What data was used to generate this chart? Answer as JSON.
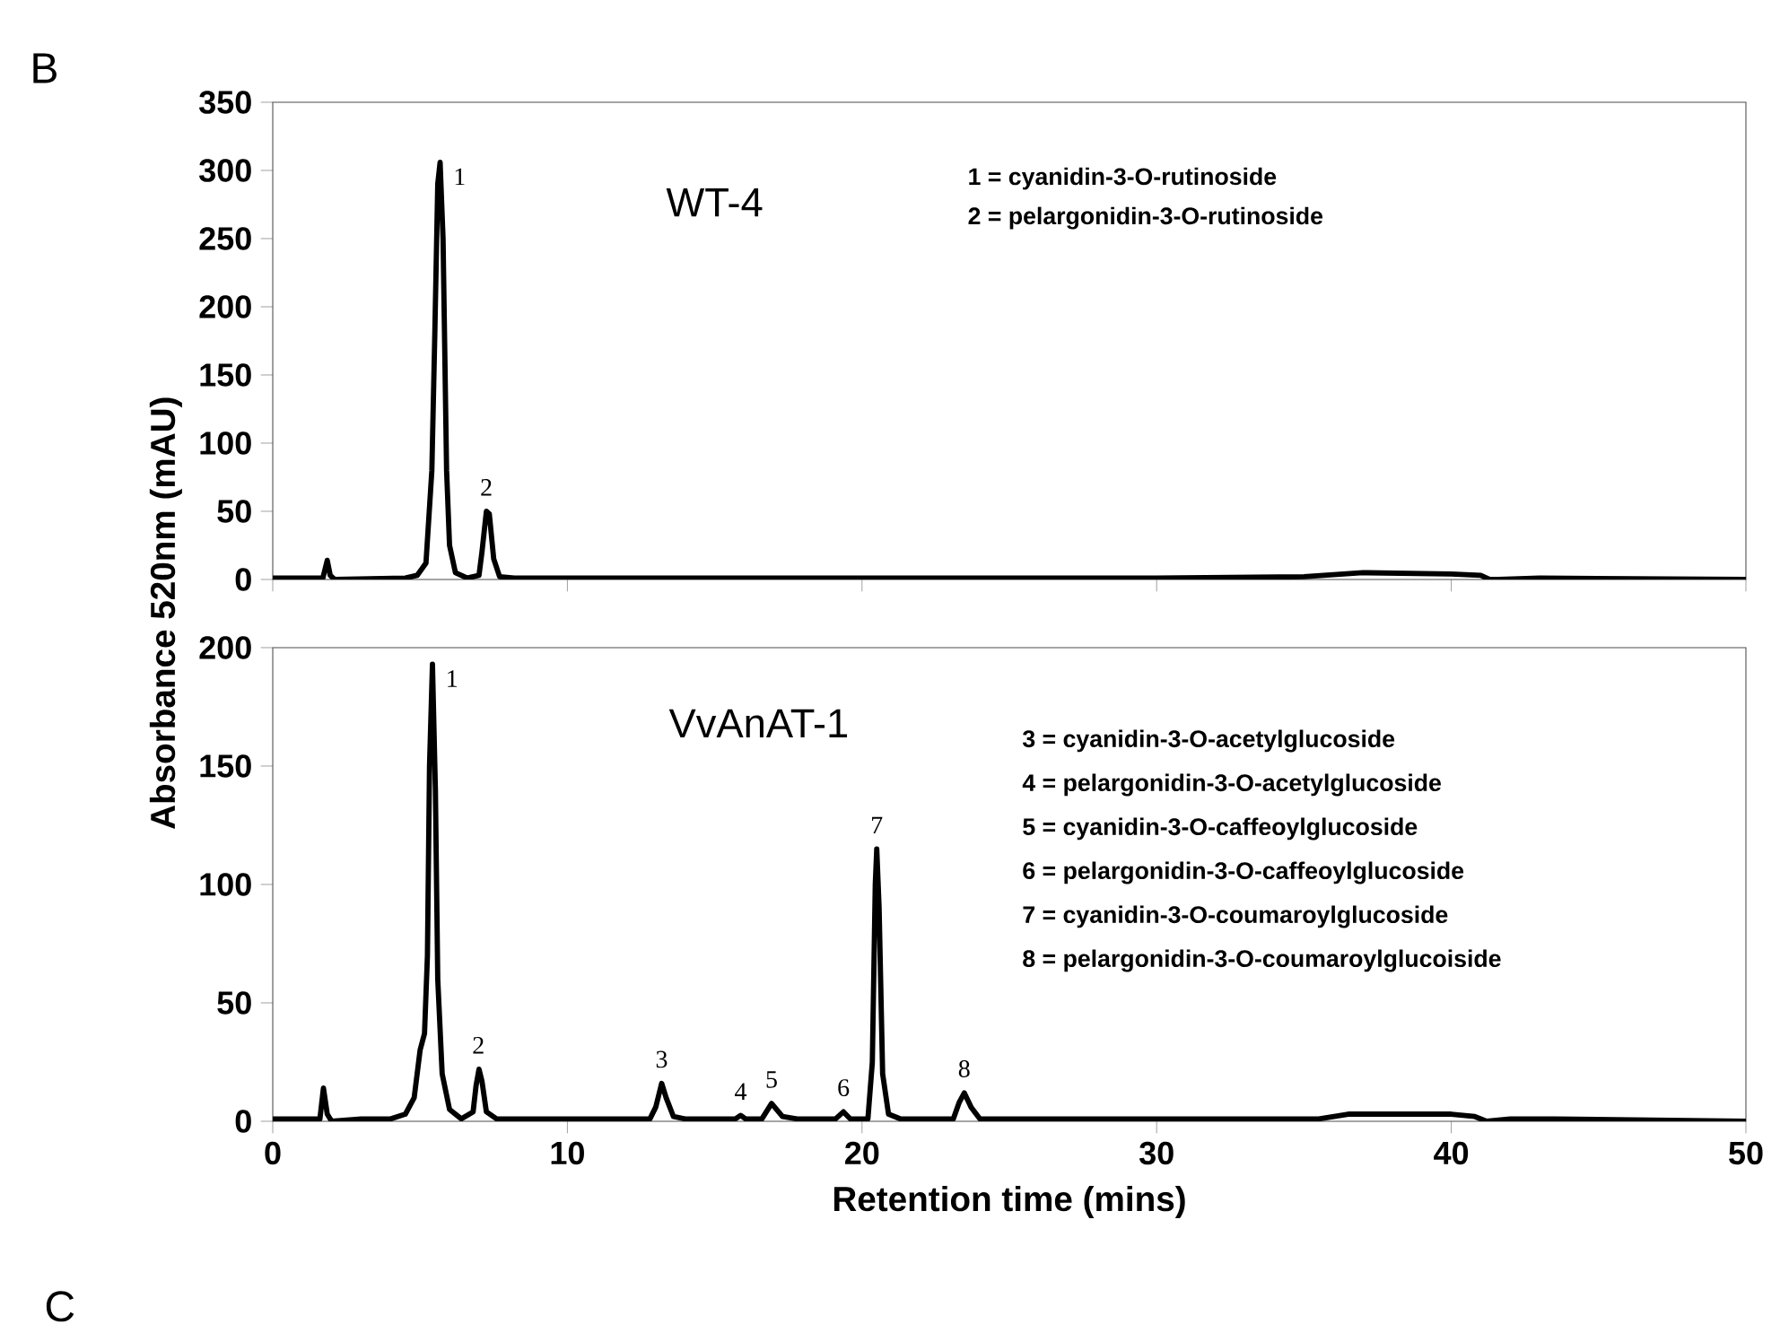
{
  "chart_data": [
    {
      "type": "line",
      "title": "WT-4",
      "ylabel": "Absorbance 520nm (mAU)",
      "series": [
        {
          "color": "#000000",
          "x": [
            0,
            1.7,
            1.85,
            1.95,
            2.1,
            4.5,
            4.9,
            5.2,
            5.4,
            5.5,
            5.6,
            5.68,
            5.78,
            5.9,
            6.0,
            6.2,
            6.6,
            7.0,
            7.1,
            7.25,
            7.35,
            7.5,
            7.7,
            8.2,
            30,
            35,
            37,
            40,
            41,
            41.3,
            41.6,
            43,
            50
          ],
          "values": [
            1,
            1,
            14,
            3,
            0,
            1,
            3,
            12,
            80,
            180,
            290,
            306,
            250,
            80,
            25,
            5,
            1,
            3,
            20,
            50,
            48,
            15,
            2,
            1,
            1,
            2,
            5,
            4,
            3,
            0,
            0,
            1,
            0
          ]
        }
      ],
      "xlim": [
        0,
        50
      ],
      "xticks": [
        0,
        10,
        20,
        30,
        40,
        50
      ],
      "ylim": [
        0,
        350
      ],
      "yticks": [
        0,
        50,
        100,
        150,
        200,
        250,
        300,
        350
      ],
      "tick_labels": "y",
      "line_style": "solid",
      "annotations": [
        "B",
        "1 = cyanidin-3-O-rutinoside",
        "2 = pelargonidin-3-O-rutinoside",
        {
          "text": "1",
          "x": 5.68,
          "y": 306
        },
        {
          "text": "2",
          "x": 7.25,
          "y": 50
        }
      ]
    },
    {
      "type": "line",
      "title": "VvAnAT-1",
      "xlabel": "Retention time (mins)",
      "series": [
        {
          "color": "#000000",
          "x": [
            0,
            1.6,
            1.72,
            1.85,
            2.0,
            3,
            4.0,
            4.5,
            4.8,
            5.0,
            5.15,
            5.25,
            5.32,
            5.42,
            5.52,
            5.6,
            5.75,
            6.0,
            6.4,
            6.8,
            6.9,
            7.0,
            7.1,
            7.25,
            7.6,
            12.8,
            13.0,
            13.2,
            13.35,
            13.6,
            14,
            15.7,
            15.88,
            16.05,
            16.6,
            16.93,
            17.3,
            17.8,
            19.1,
            19.37,
            19.6,
            20.2,
            20.35,
            20.45,
            20.5,
            20.58,
            20.7,
            20.9,
            21.3,
            23.1,
            23.3,
            23.47,
            23.7,
            24.0,
            35.5,
            36.5,
            40,
            40.8,
            41.2,
            42,
            43.5,
            50
          ],
          "values": [
            1,
            1,
            14,
            3,
            0,
            1,
            1,
            3,
            10,
            30,
            37,
            70,
            150,
            193,
            140,
            60,
            20,
            5,
            1,
            4,
            15,
            22,
            17,
            4,
            1,
            1,
            6,
            16,
            10,
            2,
            1,
            1,
            2.5,
            1,
            1,
            7.5,
            2,
            1,
            1,
            4,
            1,
            1,
            25,
            100,
            115,
            90,
            20,
            3,
            1,
            1,
            8,
            12,
            6,
            1,
            1,
            3,
            3,
            2,
            0,
            1,
            1,
            0
          ]
        }
      ],
      "xlim": [
        0,
        50
      ],
      "xticks": [
        0,
        10,
        20,
        30,
        40,
        50
      ],
      "ylim": [
        0,
        200
      ],
      "yticks": [
        0,
        50,
        100,
        150,
        200
      ],
      "line_style": "solid",
      "annotations": [
        "C",
        "3 = cyanidin-3-O-acetylglucoside",
        "4 = pelargonidin-3-O-acetylglucoside",
        "5 = cyanidin-3-O-caffeoylglucoside",
        "6 = pelargonidin-3-O-caffeoylglucoside",
        "7 = cyanidin-3-O-coumaroylglucoside",
        "8 = pelargonidin-3-O-coumaroylglucoiside",
        {
          "text": "1",
          "x": 5.42,
          "y": 193
        },
        {
          "text": "2",
          "x": 6.98,
          "y": 22
        },
        {
          "text": "3",
          "x": 13.2,
          "y": 16
        },
        {
          "text": "4",
          "x": 15.88,
          "y": 2.5
        },
        {
          "text": "5",
          "x": 16.93,
          "y": 7.5
        },
        {
          "text": "6",
          "x": 19.37,
          "y": 4
        },
        {
          "text": "7",
          "x": 20.5,
          "y": 115
        },
        {
          "text": "8",
          "x": 23.47,
          "y": 12
        }
      ]
    }
  ]
}
